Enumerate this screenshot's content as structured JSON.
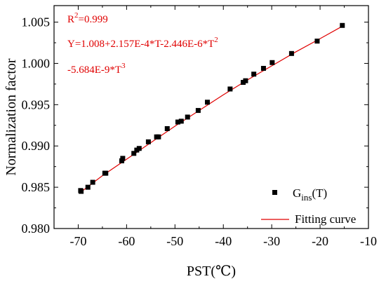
{
  "chart_data": {
    "type": "scatter",
    "xlabel": "PST(℃)",
    "ylabel": "Normalization factor",
    "xlim": [
      -75,
      -10
    ],
    "ylim": [
      0.98,
      1.007
    ],
    "x_ticks": [
      -70,
      -60,
      -50,
      -40,
      -30,
      -20,
      -10
    ],
    "x_tick_labels": [
      "-70",
      "-60",
      "-50",
      "-40",
      "-30",
      "-20",
      "-10"
    ],
    "y_ticks": [
      0.98,
      0.985,
      0.99,
      0.995,
      1.0,
      1.005
    ],
    "y_tick_labels": [
      "0.980",
      "0.985",
      "0.990",
      "0.995",
      "1.000",
      "1.005"
    ],
    "grid": false,
    "legend_position": "bottom-right",
    "series": [
      {
        "name": "G_ins(T)",
        "legend_main": "G",
        "legend_sub": "ins",
        "legend_tail": "(T)",
        "color": "#000000",
        "marker": "square",
        "x": [
          -69.5,
          -69.4,
          -68,
          -67,
          -64.5,
          -64.3,
          -61,
          -60.8,
          -58.5,
          -57.9,
          -57.4,
          -55.5,
          -53.8,
          -53.4,
          -51.6,
          -49.4,
          -48.7,
          -47.4,
          -45.2,
          -43.3,
          -38.6,
          -35.9,
          -35.4,
          -33.7,
          -31.7,
          -29.9,
          -25.9,
          -20.6,
          -15.4
        ],
        "y": [
          0.9846,
          0.9845,
          0.985,
          0.9856,
          0.9867,
          0.9867,
          0.9882,
          0.9885,
          0.9891,
          0.9895,
          0.9897,
          0.9905,
          0.9911,
          0.9911,
          0.9921,
          0.9929,
          0.993,
          0.9935,
          0.9943,
          0.9953,
          0.9969,
          0.9977,
          0.9979,
          0.9987,
          0.9994,
          1.0001,
          1.0012,
          1.0027,
          1.0046
        ]
      },
      {
        "name": "Fitting curve",
        "color": "#e00000",
        "style": "line",
        "x": [
          -69.5,
          -65,
          -60,
          -55,
          -50,
          -45,
          -40,
          -35,
          -30,
          -25,
          -20,
          -15.4
        ],
        "y": [
          0.9844,
          0.9864,
          0.9884,
          0.9904,
          0.9924,
          0.9943,
          0.9962,
          0.998,
          0.9997,
          1.0014,
          1.003,
          1.0045
        ]
      }
    ],
    "annotations": {
      "r2_main": "R",
      "r2_sup": "2",
      "r2_tail": "=0.999",
      "eq_line1": "Y=1.008+2.157E-4*T-2.446E-6*T",
      "eq_line1_sup": "2",
      "eq_line2": "-5.684E-9*T",
      "eq_line2_sup": "3",
      "color": "#e00000"
    }
  }
}
